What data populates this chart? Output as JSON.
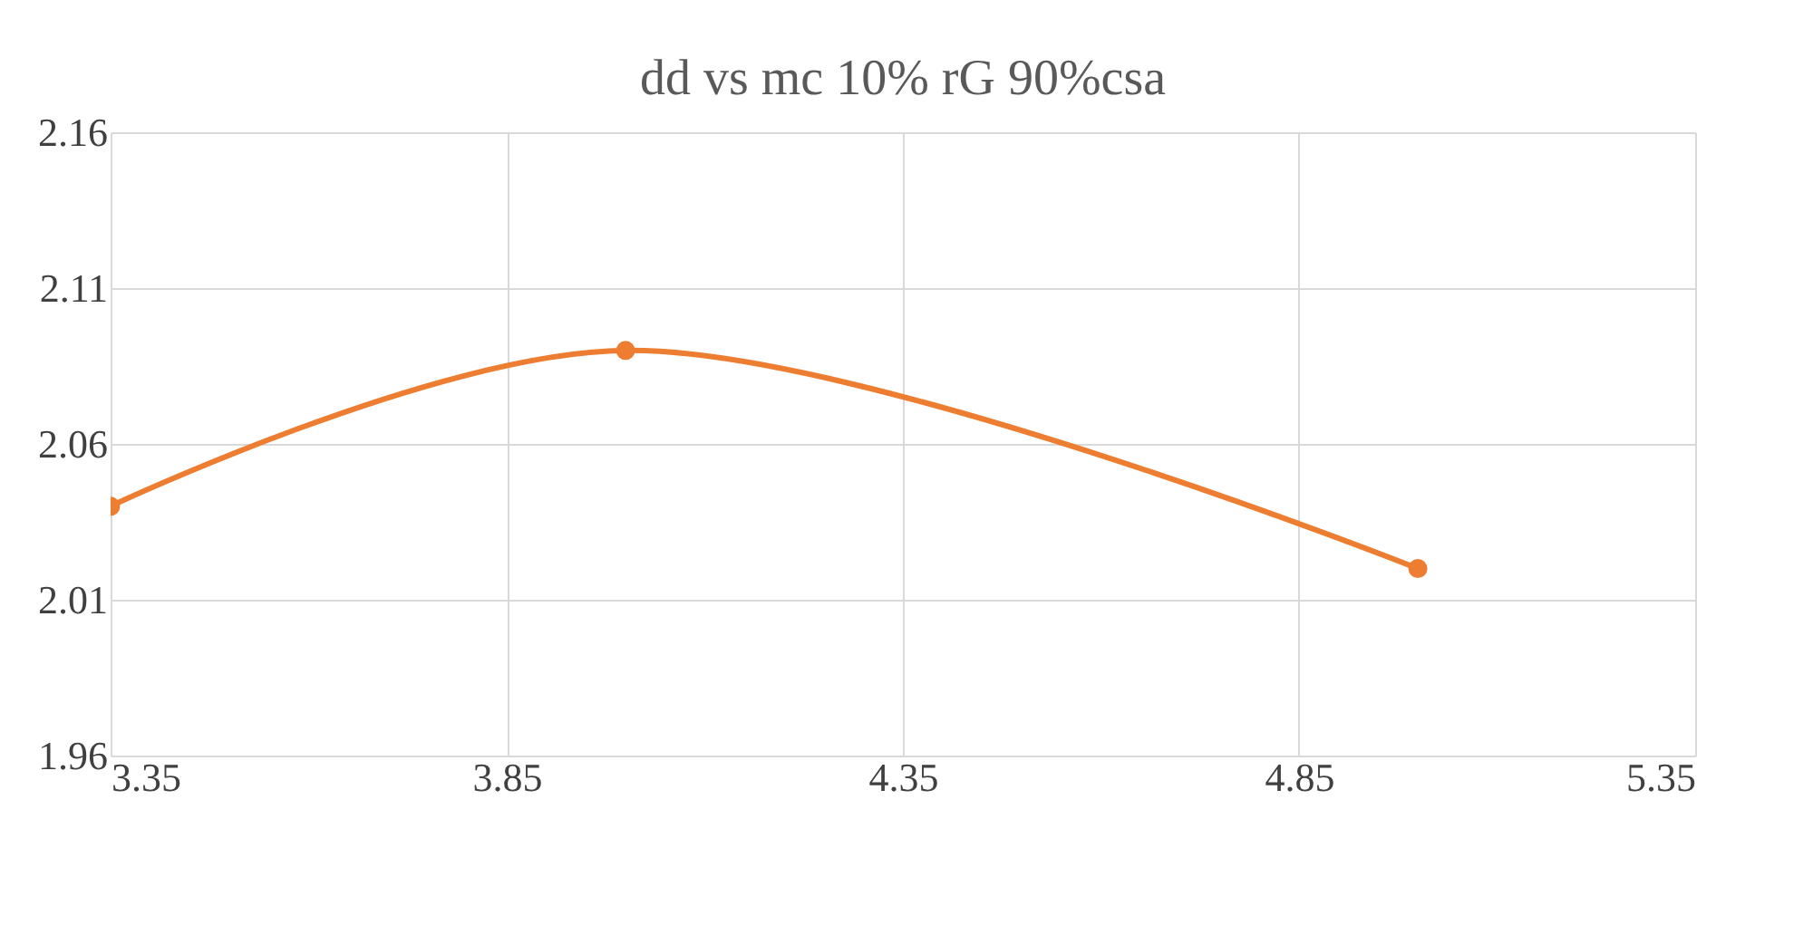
{
  "chart_data": {
    "type": "line",
    "title": "dd vs mc 10% rG 90%csa",
    "x": [
      3.35,
      4.0,
      5.0
    ],
    "series": [
      {
        "color": "#ed7d31",
        "values": [
          2.04,
          2.09,
          2.02
        ]
      }
    ],
    "xlim": [
      3.35,
      5.35
    ],
    "xticks": [
      3.35,
      3.85,
      4.35,
      4.85,
      5.35
    ],
    "ylim": [
      1.96,
      2.16
    ],
    "yticks": [
      1.96,
      2.01,
      2.06,
      2.11,
      2.16
    ],
    "grid": true,
    "marker": "circle",
    "line_style": "solid"
  }
}
